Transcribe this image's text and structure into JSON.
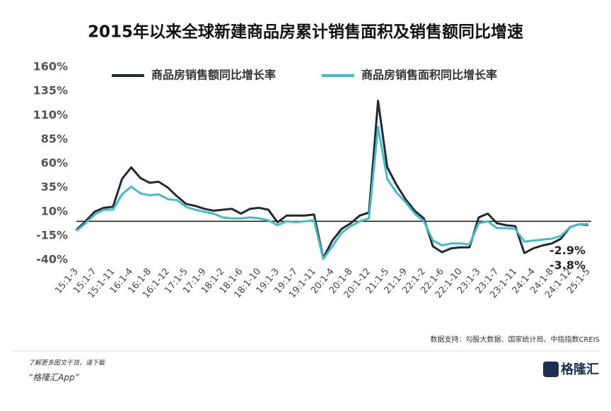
{
  "page": {
    "source": "数据支持：勾股大数据、国家统计局、中指指数CREIS",
    "footer_line1": "了解更多图文干货，请下载",
    "footer_line2": "“格隆汇App”",
    "logo": "格隆汇"
  },
  "chart_data": {
    "type": "line",
    "title": "2015年以来全球新建商品房累计销售面积及销售额同比增速",
    "categories": [
      "15:1-3",
      null,
      "15:1-7",
      null,
      "15:1-11",
      null,
      "16:1-4",
      null,
      "16:1-8",
      null,
      "16:1-12",
      null,
      "17:1-5",
      null,
      "17:1-9",
      null,
      "18:1-2",
      null,
      "18:1-6",
      null,
      "18:1-10",
      null,
      "19:1-3",
      null,
      "19:1-7",
      null,
      "19:1-11",
      null,
      "20:1-4",
      null,
      "20:1-8",
      null,
      "20:1-12",
      null,
      "21:1-5",
      null,
      "21:1-9",
      null,
      "22:1-2",
      null,
      "22:1-6",
      null,
      "22:1-10",
      null,
      "23:1-3",
      null,
      "23:1-7",
      null,
      "23:1-11",
      null,
      "24:1-4",
      null,
      "24:1-8",
      null,
      "24:1-12",
      null,
      "25:1-5"
    ],
    "series": [
      {
        "name": "商品房销售额同比增长率",
        "color": "#1f2a33",
        "values": [
          -9,
          0,
          10,
          14,
          15,
          44,
          56,
          45,
          40,
          41,
          35,
          26,
          18,
          16,
          13,
          11,
          12,
          13,
          8,
          13,
          14,
          12,
          -1,
          6,
          6,
          6,
          7,
          -38,
          -20,
          -8,
          -2,
          6,
          9,
          125,
          56,
          38,
          23,
          11,
          3,
          -26,
          -32,
          -28,
          -27,
          -27,
          4,
          8,
          -2,
          -4,
          -5,
          -33,
          -28,
          -25,
          -23,
          -18,
          -6,
          -3,
          -3.8
        ]
      },
      {
        "name": "商品房销售面积同比增长率",
        "color": "#4bb8c4",
        "values": [
          -10,
          -2,
          7,
          12,
          12,
          28,
          36,
          29,
          27,
          28,
          23,
          22,
          15,
          12,
          10,
          8,
          4,
          3,
          3,
          4,
          3,
          1,
          -4,
          0,
          -1,
          0,
          1,
          -39,
          -26,
          -12,
          -5,
          0,
          3,
          98,
          44,
          30,
          20,
          8,
          0,
          -20,
          -25,
          -23,
          -23,
          -24,
          -2,
          0,
          -7,
          -7,
          -8,
          -21,
          -20,
          -19,
          -18,
          -15,
          -6,
          -3,
          -2.9
        ]
      }
    ],
    "annotations": [
      {
        "text": "-2.9%",
        "series": 1
      },
      {
        "text": "-3.8%",
        "series": 0
      }
    ],
    "ylim": [
      -40,
      160
    ],
    "yticks": [
      {
        "value": 160,
        "label": "160%"
      },
      {
        "value": 135,
        "label": "135%"
      },
      {
        "value": 110,
        "label": "110%"
      },
      {
        "value": 85,
        "label": "85%"
      },
      {
        "value": 60,
        "label": "60%"
      },
      {
        "value": 35,
        "label": "35%"
      },
      {
        "value": 10,
        "label": "10%"
      },
      {
        "value": -15,
        "label": "-15%"
      },
      {
        "value": -40,
        "label": "-40%"
      }
    ],
    "zero_line": 0,
    "grid": false
  }
}
